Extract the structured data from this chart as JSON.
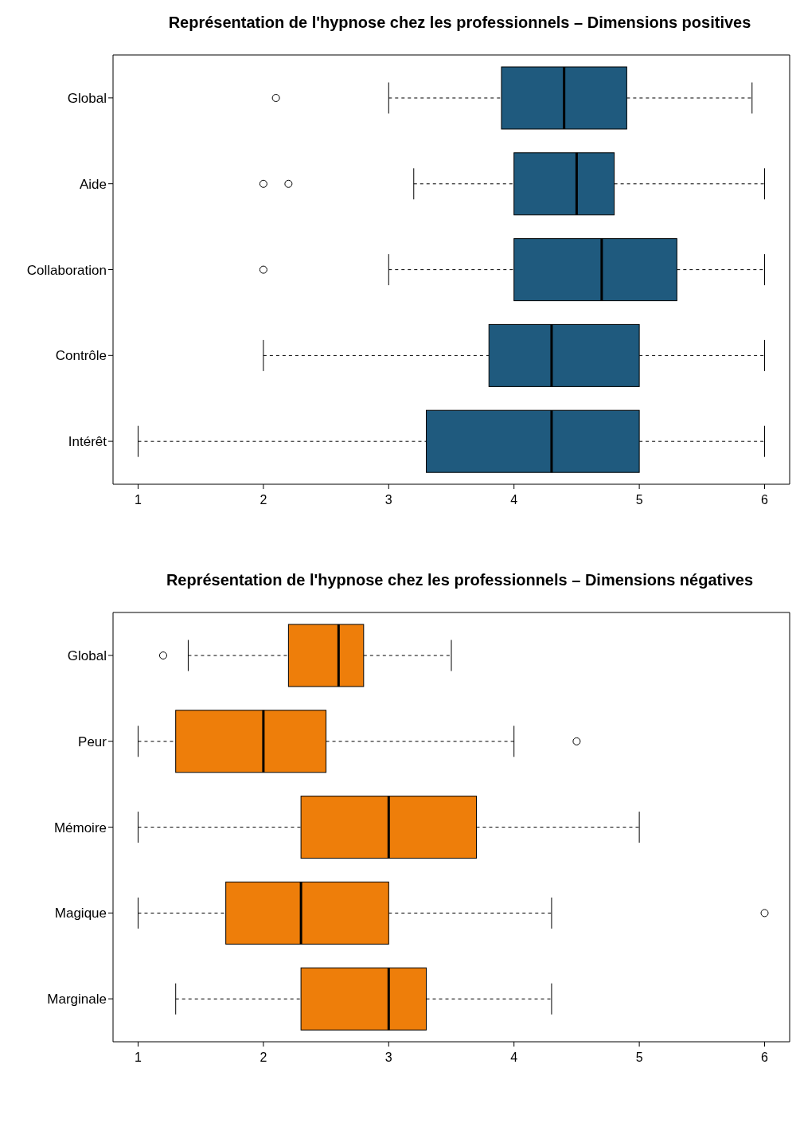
{
  "chart_data": [
    {
      "type": "box",
      "orientation": "horizontal",
      "title": "Représentation de l'hypnose chez les professionnels – Dimensions positives",
      "color": "#1f5a7e",
      "categories": [
        "Global",
        "Aide",
        "Collaboration",
        "Contrôle",
        "Intérêt"
      ],
      "xlim": [
        0.8,
        6.2
      ],
      "xticks": [
        1,
        2,
        3,
        4,
        5,
        6
      ],
      "boxes": [
        {
          "low": 3,
          "q1": 3.9,
          "median": 4.4,
          "q3": 4.9,
          "high": 5.9,
          "outliers": [
            2.1
          ]
        },
        {
          "low": 3.2,
          "q1": 4.0,
          "median": 4.5,
          "q3": 4.8,
          "high": 6,
          "outliers": [
            2.0,
            2.2
          ]
        },
        {
          "low": 3,
          "q1": 4.0,
          "median": 4.7,
          "q3": 5.3,
          "high": 6,
          "outliers": [
            2.0
          ]
        },
        {
          "low": 2,
          "q1": 3.8,
          "median": 4.3,
          "q3": 5,
          "high": 6
        },
        {
          "low": 1,
          "q1": 3.3,
          "median": 4.3,
          "q3": 5,
          "high": 6
        }
      ]
    },
    {
      "type": "box",
      "orientation": "horizontal",
      "title": "Représentation de l'hypnose chez les professionnels – Dimensions négatives",
      "color": "#ee7e0a",
      "categories": [
        "Global",
        "Peur",
        "Mémoire",
        "Magique",
        "Marginale"
      ],
      "xlim": [
        0.8,
        6.2
      ],
      "xticks": [
        1,
        2,
        3,
        4,
        5,
        6
      ],
      "boxes": [
        {
          "low": 1.4,
          "q1": 2.2,
          "median": 2.6,
          "q3": 2.8,
          "high": 3.5,
          "outliers": [
            1.2
          ]
        },
        {
          "low": 1,
          "q1": 1.3,
          "median": 2.0,
          "q3": 2.5,
          "high": 4.0,
          "outliers": [
            4.5
          ]
        },
        {
          "low": 1,
          "q1": 2.3,
          "median": 3,
          "q3": 3.7,
          "high": 5
        },
        {
          "low": 1,
          "q1": 1.7,
          "median": 2.3,
          "q3": 3,
          "high": 4.3,
          "outliers": [
            6
          ]
        },
        {
          "low": 1.3,
          "q1": 2.3,
          "median": 3,
          "q3": 3.3,
          "high": 4.3
        }
      ]
    }
  ]
}
